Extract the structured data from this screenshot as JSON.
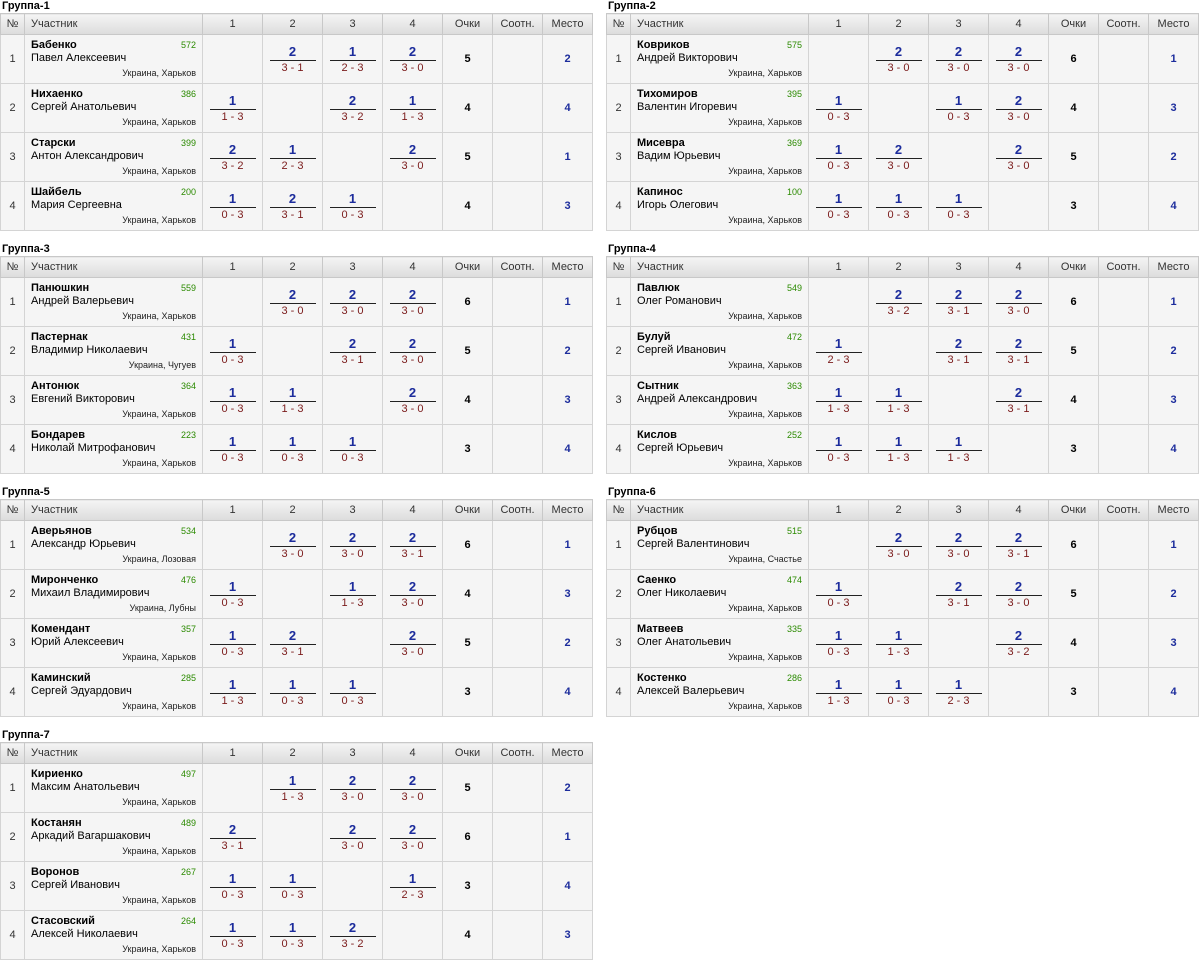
{
  "headers": {
    "num": "№",
    "participant": "Участник",
    "c1": "1",
    "c2": "2",
    "c3": "3",
    "c4": "4",
    "points": "Очки",
    "ratio": "Соотн.",
    "place": "Место"
  },
  "groups": [
    {
      "title": "Группа-1",
      "rows": [
        {
          "n": "1",
          "last": "Бабенко",
          "first": "Павел Алексеевич",
          "rating": "572",
          "city": "Украина, Харьков",
          "results": [
            null,
            {
              "w": "2",
              "s": "3 - 1"
            },
            {
              "w": "1",
              "s": "2 - 3"
            },
            {
              "w": "2",
              "s": "3 - 0"
            }
          ],
          "points": "5",
          "ratio": "",
          "place": "2"
        },
        {
          "n": "2",
          "last": "Нихаенко",
          "first": "Сергей Анатольевич",
          "rating": "386",
          "city": "Украина, Харьков",
          "results": [
            {
              "w": "1",
              "s": "1 - 3"
            },
            null,
            {
              "w": "2",
              "s": "3 - 2"
            },
            {
              "w": "1",
              "s": "1 - 3"
            }
          ],
          "points": "4",
          "ratio": "",
          "place": "4"
        },
        {
          "n": "3",
          "last": "Старски",
          "first": "Антон Александрович",
          "rating": "399",
          "city": "Украина, Харьков",
          "results": [
            {
              "w": "2",
              "s": "3 - 2"
            },
            {
              "w": "1",
              "s": "2 - 3"
            },
            null,
            {
              "w": "2",
              "s": "3 - 0"
            }
          ],
          "points": "5",
          "ratio": "",
          "place": "1"
        },
        {
          "n": "4",
          "last": "Шайбель",
          "first": "Мария Сергеевна",
          "rating": "200",
          "city": "Украина, Харьков",
          "results": [
            {
              "w": "1",
              "s": "0 - 3"
            },
            {
              "w": "2",
              "s": "3 - 1"
            },
            {
              "w": "1",
              "s": "0 - 3"
            },
            null
          ],
          "points": "4",
          "ratio": "",
          "place": "3"
        }
      ]
    },
    {
      "title": "Группа-2",
      "rows": [
        {
          "n": "1",
          "last": "Ковриков",
          "first": "Андрей Викторович",
          "rating": "575",
          "city": "Украина, Харьков",
          "results": [
            null,
            {
              "w": "2",
              "s": "3 - 0"
            },
            {
              "w": "2",
              "s": "3 - 0"
            },
            {
              "w": "2",
              "s": "3 - 0"
            }
          ],
          "points": "6",
          "ratio": "",
          "place": "1"
        },
        {
          "n": "2",
          "last": "Тихомиров",
          "first": "Валентин Игоревич",
          "rating": "395",
          "city": "Украина, Харьков",
          "results": [
            {
              "w": "1",
              "s": "0 - 3"
            },
            null,
            {
              "w": "1",
              "s": "0 - 3"
            },
            {
              "w": "2",
              "s": "3 - 0"
            }
          ],
          "points": "4",
          "ratio": "",
          "place": "3"
        },
        {
          "n": "3",
          "last": "Мисевра",
          "first": "Вадим Юрьевич",
          "rating": "369",
          "city": "Украина, Харьков",
          "results": [
            {
              "w": "1",
              "s": "0 - 3"
            },
            {
              "w": "2",
              "s": "3 - 0"
            },
            null,
            {
              "w": "2",
              "s": "3 - 0"
            }
          ],
          "points": "5",
          "ratio": "",
          "place": "2"
        },
        {
          "n": "4",
          "last": "Капинос",
          "first": "Игорь Олегович",
          "rating": "100",
          "city": "Украина, Харьков",
          "results": [
            {
              "w": "1",
              "s": "0 - 3"
            },
            {
              "w": "1",
              "s": "0 - 3"
            },
            {
              "w": "1",
              "s": "0 - 3"
            },
            null
          ],
          "points": "3",
          "ratio": "",
          "place": "4"
        }
      ]
    },
    {
      "title": "Группа-3",
      "rows": [
        {
          "n": "1",
          "last": "Панюшкин",
          "first": "Андрей Валерьевич",
          "rating": "559",
          "city": "Украина, Харьков",
          "results": [
            null,
            {
              "w": "2",
              "s": "3 - 0"
            },
            {
              "w": "2",
              "s": "3 - 0"
            },
            {
              "w": "2",
              "s": "3 - 0"
            }
          ],
          "points": "6",
          "ratio": "",
          "place": "1"
        },
        {
          "n": "2",
          "last": "Пастернак",
          "first": "Владимир Николаевич",
          "rating": "431",
          "city": "Украина, Чугуев",
          "results": [
            {
              "w": "1",
              "s": "0 - 3"
            },
            null,
            {
              "w": "2",
              "s": "3 - 1"
            },
            {
              "w": "2",
              "s": "3 - 0"
            }
          ],
          "points": "5",
          "ratio": "",
          "place": "2"
        },
        {
          "n": "3",
          "last": "Антонюк",
          "first": "Евгений Викторович",
          "rating": "364",
          "city": "Украина, Харьков",
          "results": [
            {
              "w": "1",
              "s": "0 - 3"
            },
            {
              "w": "1",
              "s": "1 - 3"
            },
            null,
            {
              "w": "2",
              "s": "3 - 0"
            }
          ],
          "points": "4",
          "ratio": "",
          "place": "3"
        },
        {
          "n": "4",
          "last": "Бондарев",
          "first": "Николай Митрофанович",
          "rating": "223",
          "city": "Украина, Харьков",
          "results": [
            {
              "w": "1",
              "s": "0 - 3"
            },
            {
              "w": "1",
              "s": "0 - 3"
            },
            {
              "w": "1",
              "s": "0 - 3"
            },
            null
          ],
          "points": "3",
          "ratio": "",
          "place": "4"
        }
      ]
    },
    {
      "title": "Группа-4",
      "rows": [
        {
          "n": "1",
          "last": "Павлюк",
          "first": "Олег Романович",
          "rating": "549",
          "city": "Украина, Харьков",
          "results": [
            null,
            {
              "w": "2",
              "s": "3 - 2"
            },
            {
              "w": "2",
              "s": "3 - 1"
            },
            {
              "w": "2",
              "s": "3 - 0"
            }
          ],
          "points": "6",
          "ratio": "",
          "place": "1"
        },
        {
          "n": "2",
          "last": "Булуй",
          "first": "Сергей Иванович",
          "rating": "472",
          "city": "Украина, Харьков",
          "results": [
            {
              "w": "1",
              "s": "2 - 3"
            },
            null,
            {
              "w": "2",
              "s": "3 - 1"
            },
            {
              "w": "2",
              "s": "3 - 1"
            }
          ],
          "points": "5",
          "ratio": "",
          "place": "2"
        },
        {
          "n": "3",
          "last": "Сытник",
          "first": "Андрей Александрович",
          "rating": "363",
          "city": "Украина, Харьков",
          "results": [
            {
              "w": "1",
              "s": "1 - 3"
            },
            {
              "w": "1",
              "s": "1 - 3"
            },
            null,
            {
              "w": "2",
              "s": "3 - 1"
            }
          ],
          "points": "4",
          "ratio": "",
          "place": "3"
        },
        {
          "n": "4",
          "last": "Кислов",
          "first": "Сергей Юрьевич",
          "rating": "252",
          "city": "Украина, Харьков",
          "results": [
            {
              "w": "1",
              "s": "0 - 3"
            },
            {
              "w": "1",
              "s": "1 - 3"
            },
            {
              "w": "1",
              "s": "1 - 3"
            },
            null
          ],
          "points": "3",
          "ratio": "",
          "place": "4"
        }
      ]
    },
    {
      "title": "Группа-5",
      "rows": [
        {
          "n": "1",
          "last": "Аверьянов",
          "first": "Александр Юрьевич",
          "rating": "534",
          "city": "Украина, Лозовая",
          "results": [
            null,
            {
              "w": "2",
              "s": "3 - 0"
            },
            {
              "w": "2",
              "s": "3 - 0"
            },
            {
              "w": "2",
              "s": "3 - 1"
            }
          ],
          "points": "6",
          "ratio": "",
          "place": "1"
        },
        {
          "n": "2",
          "last": "Миронченко",
          "first": "Михаил Владимирович",
          "rating": "476",
          "city": "Украина, Лубны",
          "results": [
            {
              "w": "1",
              "s": "0 - 3"
            },
            null,
            {
              "w": "1",
              "s": "1 - 3"
            },
            {
              "w": "2",
              "s": "3 - 0"
            }
          ],
          "points": "4",
          "ratio": "",
          "place": "3"
        },
        {
          "n": "3",
          "last": "Комендант",
          "first": "Юрий Алексеевич",
          "rating": "357",
          "city": "Украина, Харьков",
          "results": [
            {
              "w": "1",
              "s": "0 - 3"
            },
            {
              "w": "2",
              "s": "3 - 1"
            },
            null,
            {
              "w": "2",
              "s": "3 - 0"
            }
          ],
          "points": "5",
          "ratio": "",
          "place": "2"
        },
        {
          "n": "4",
          "last": "Каминский",
          "first": "Сергей Эдуардович",
          "rating": "285",
          "city": "Украина, Харьков",
          "results": [
            {
              "w": "1",
              "s": "1 - 3"
            },
            {
              "w": "1",
              "s": "0 - 3"
            },
            {
              "w": "1",
              "s": "0 - 3"
            },
            null
          ],
          "points": "3",
          "ratio": "",
          "place": "4"
        }
      ]
    },
    {
      "title": "Группа-6",
      "rows": [
        {
          "n": "1",
          "last": "Рубцов",
          "first": "Сергей Валентинович",
          "rating": "515",
          "city": "Украина, Счастье",
          "results": [
            null,
            {
              "w": "2",
              "s": "3 - 0"
            },
            {
              "w": "2",
              "s": "3 - 0"
            },
            {
              "w": "2",
              "s": "3 - 1"
            }
          ],
          "points": "6",
          "ratio": "",
          "place": "1"
        },
        {
          "n": "2",
          "last": "Саенко",
          "first": "Олег Николаевич",
          "rating": "474",
          "city": "Украина, Харьков",
          "results": [
            {
              "w": "1",
              "s": "0 - 3"
            },
            null,
            {
              "w": "2",
              "s": "3 - 1"
            },
            {
              "w": "2",
              "s": "3 - 0"
            }
          ],
          "points": "5",
          "ratio": "",
          "place": "2"
        },
        {
          "n": "3",
          "last": "Матвеев",
          "first": "Олег Анатольевич",
          "rating": "335",
          "city": "Украина, Харьков",
          "results": [
            {
              "w": "1",
              "s": "0 - 3"
            },
            {
              "w": "1",
              "s": "1 - 3"
            },
            null,
            {
              "w": "2",
              "s": "3 - 2"
            }
          ],
          "points": "4",
          "ratio": "",
          "place": "3"
        },
        {
          "n": "4",
          "last": "Костенко",
          "first": "Алексей Валерьевич",
          "rating": "286",
          "city": "Украина, Харьков",
          "results": [
            {
              "w": "1",
              "s": "1 - 3"
            },
            {
              "w": "1",
              "s": "0 - 3"
            },
            {
              "w": "1",
              "s": "2 - 3"
            },
            null
          ],
          "points": "3",
          "ratio": "",
          "place": "4"
        }
      ]
    },
    {
      "title": "Группа-7",
      "rows": [
        {
          "n": "1",
          "last": "Кириенко",
          "first": "Максим Анатольевич",
          "rating": "497",
          "city": "Украина, Харьков",
          "results": [
            null,
            {
              "w": "1",
              "s": "1 - 3"
            },
            {
              "w": "2",
              "s": "3 - 0"
            },
            {
              "w": "2",
              "s": "3 - 0"
            }
          ],
          "points": "5",
          "ratio": "",
          "place": "2"
        },
        {
          "n": "2",
          "last": "Костанян",
          "first": "Аркадий Вагаршакович",
          "rating": "489",
          "city": "Украина, Харьков",
          "results": [
            {
              "w": "2",
              "s": "3 - 1"
            },
            null,
            {
              "w": "2",
              "s": "3 - 0"
            },
            {
              "w": "2",
              "s": "3 - 0"
            }
          ],
          "points": "6",
          "ratio": "",
          "place": "1"
        },
        {
          "n": "3",
          "last": "Воронов",
          "first": "Сергей Иванович",
          "rating": "267",
          "city": "Украина, Харьков",
          "results": [
            {
              "w": "1",
              "s": "0 - 3"
            },
            {
              "w": "1",
              "s": "0 - 3"
            },
            null,
            {
              "w": "1",
              "s": "2 - 3"
            }
          ],
          "points": "3",
          "ratio": "",
          "place": "4"
        },
        {
          "n": "4",
          "last": "Стасовский",
          "first": "Алексей Николаевич",
          "rating": "264",
          "city": "Украина, Харьков",
          "results": [
            {
              "w": "1",
              "s": "0 - 3"
            },
            {
              "w": "1",
              "s": "0 - 3"
            },
            {
              "w": "2",
              "s": "3 - 2"
            },
            null
          ],
          "points": "4",
          "ratio": "",
          "place": "3"
        }
      ]
    }
  ]
}
